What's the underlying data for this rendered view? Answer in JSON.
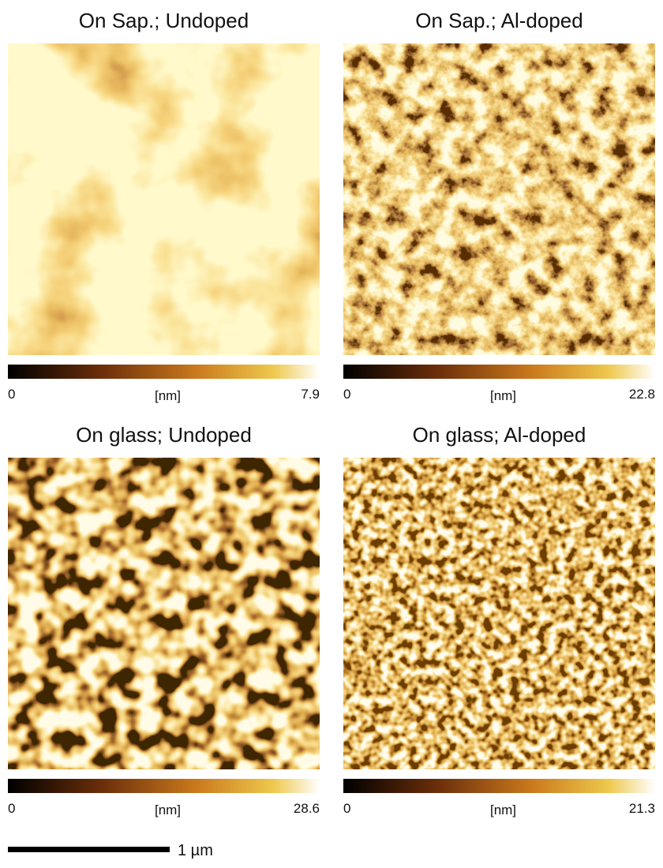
{
  "panels": [
    {
      "title": "On Sap.; Undoped",
      "colorbar": {
        "min": "0",
        "unit": "[nm]",
        "max": "7.9"
      }
    },
    {
      "title": "On Sap.; Al-doped",
      "colorbar": {
        "min": "0",
        "unit": "[nm]",
        "max": "22.8"
      }
    },
    {
      "title": "On glass; Undoped",
      "colorbar": {
        "min": "0",
        "unit": "[nm]",
        "max": "28.6"
      }
    },
    {
      "title": "On glass; Al-doped",
      "colorbar": {
        "min": "0",
        "unit": "[nm]",
        "max": "21.3"
      }
    }
  ],
  "scale_bar": {
    "label": "1 µm"
  }
}
